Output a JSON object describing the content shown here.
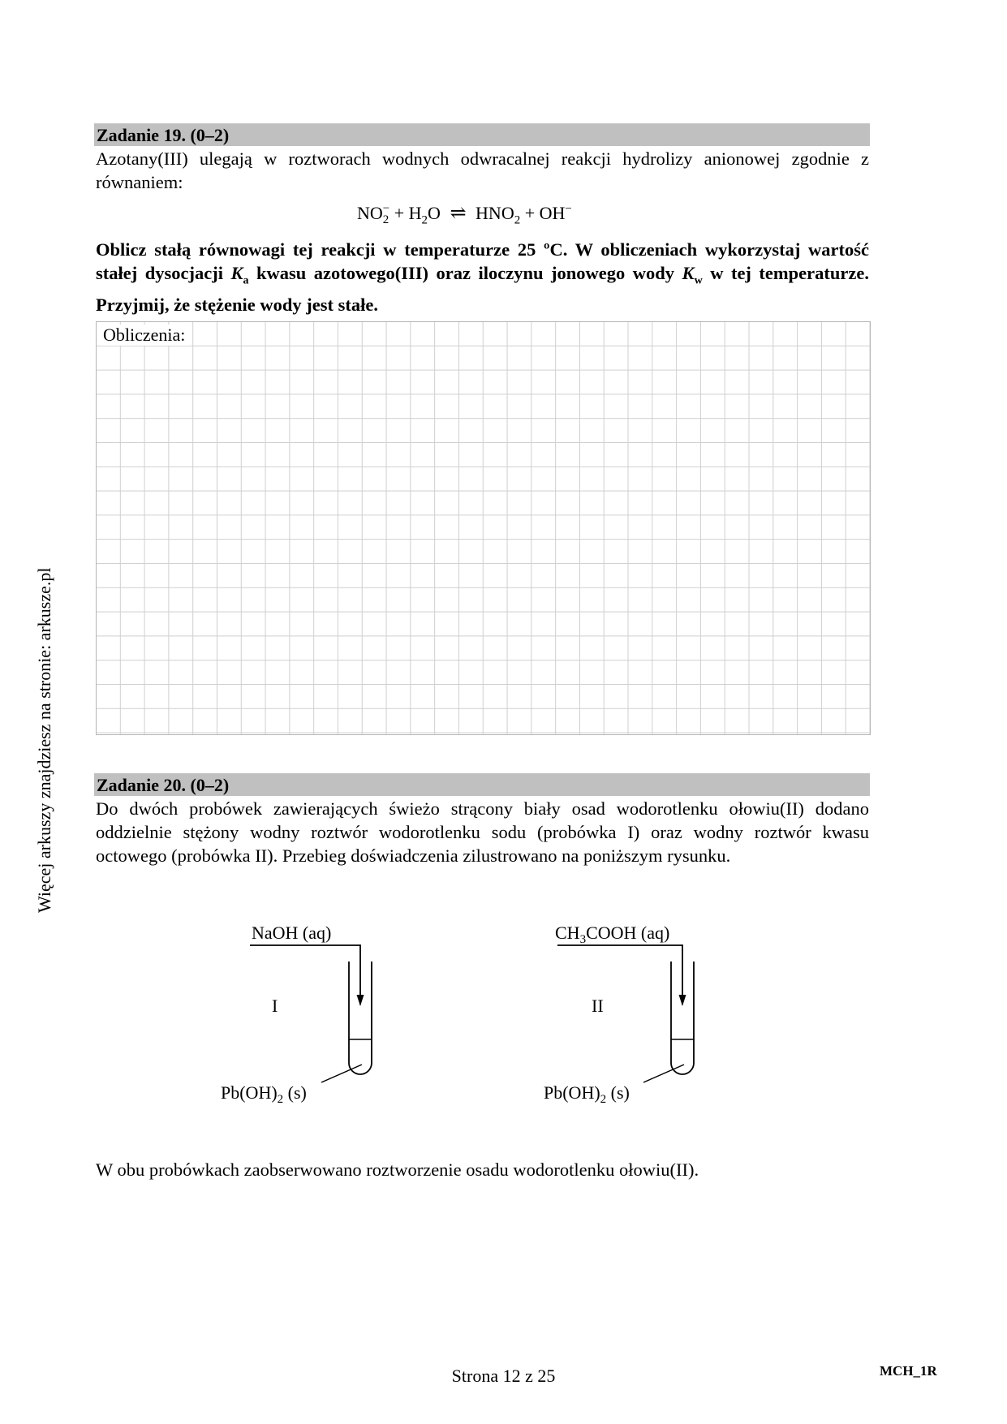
{
  "side_note": "Więcej arkuszy znajdziesz na stronie: arkusze.pl",
  "task19": {
    "header": "Zadanie 19. (0–2)",
    "intro": "Azotany(III) ulegają w roztworach wodnych odwracalnej reakcji hydrolizy anionowej zgodnie z równaniem:",
    "equation": {
      "reactant1": "NO",
      "reactant1_sub": "2",
      "reactant1_sup": "−",
      "plus1": "+ H",
      "water_sub": "2",
      "water_o": "O",
      "arrow": "⇌",
      "product1": "HNO",
      "product1_sub": "2",
      "plus2": "+ OH",
      "product2_sup": "−"
    },
    "instruction_part1": "Oblicz stałą równowagi tej reakcji w temperaturze 25 ºC. W obliczeniach wykorzystaj wartość stałej dysocjacji ",
    "ka_symbol": "K",
    "ka_sub": "a",
    "instruction_part2": " kwasu azotowego(III) oraz iloczynu jonowego wody ",
    "kw_symbol": "K",
    "kw_sub": "w",
    "instruction_part3": " w tej temperaturze. Przyjmij, że stężenie wody jest stałe.",
    "grid_label": "Obliczenia:"
  },
  "task20": {
    "header": "Zadanie 20. (0–2)",
    "intro": "Do dwóch probówek zawierających świeżo strącony biały osad wodorotlenku ołowiu(II) dodano oddzielnie  stężony wodny roztwór wodorotlenku sodu (probówka I) oraz wodny roztwór kwasu octowego (probówka II). Przebieg doświadczenia zilustrowano na poniższym rysunku.",
    "tube1": {
      "reagent": "NaOH (aq)",
      "number": "I",
      "precipitate_main": "Pb(OH)",
      "precipitate_sub": "2",
      "precipitate_state": " (s)"
    },
    "tube2": {
      "reagent_main": "CH",
      "reagent_sub": "3",
      "reagent_rest": "COOH (aq)",
      "number": "II",
      "precipitate_main": "Pb(OH)",
      "precipitate_sub": "2",
      "precipitate_state": " (s)"
    },
    "observation": "W obu probówkach zaobserwowano roztworzenie osadu wodorotlenku ołowiu(II)."
  },
  "footer": {
    "page": "Strona 12 z 25",
    "code": "MCH_1R"
  }
}
